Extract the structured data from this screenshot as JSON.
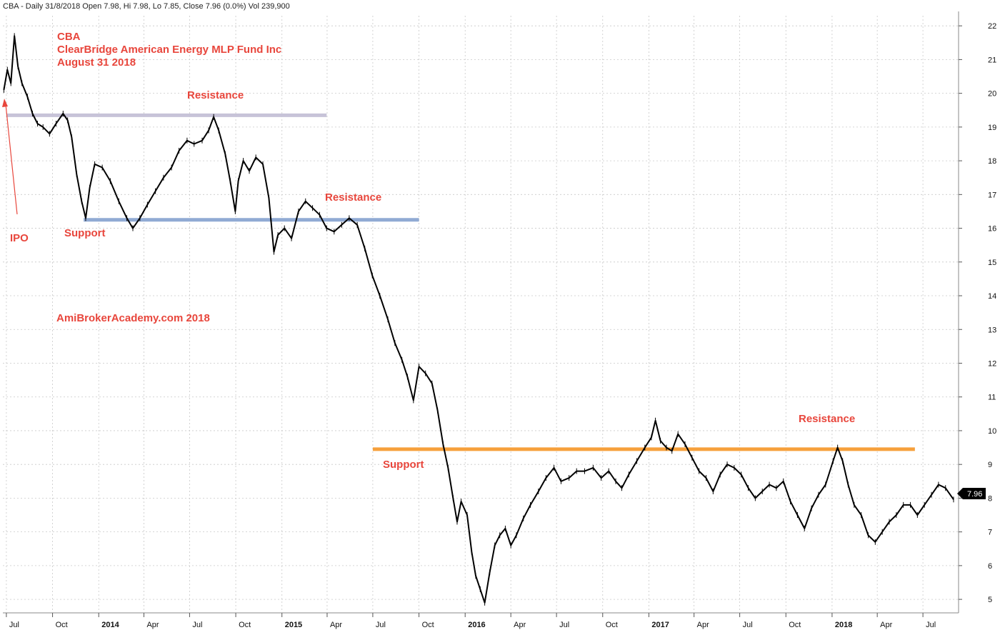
{
  "header": "CBA - Daily 31/8/2018 Open 7.98, Hi 7.98, Lo 7.85, Close 7.96 (0.0%) Vol 239,900",
  "title_lines": [
    "CBA",
    "ClearBridge American Energy MLP Fund Inc",
    "August 31 2018"
  ],
  "watermark": "AmiBrokerAcademy.com  2018",
  "last_price_tag": "7.96",
  "colors": {
    "annotation": "#e8463c",
    "price": "#000000",
    "grid": "#c8c8c8",
    "resistance_1": "#c7c3d8",
    "support_1": "#90aad4",
    "support_2": "#f6a03c"
  },
  "chart_data": {
    "type": "line",
    "ylim": [
      4.6,
      22.3
    ],
    "y_ticks": [
      "5",
      "6",
      "7",
      "8",
      "9",
      "10",
      "11",
      "12",
      "13",
      "14",
      "15",
      "16",
      "17",
      "18",
      "19",
      "20",
      "21",
      "22"
    ],
    "x_ticks": [
      {
        "label": "Jul",
        "date": "2013-07-01",
        "bold": false
      },
      {
        "label": "Oct",
        "date": "2013-10-01",
        "bold": false
      },
      {
        "label": "2014",
        "date": "2014-01-01",
        "bold": true
      },
      {
        "label": "Apr",
        "date": "2014-04-01",
        "bold": false
      },
      {
        "label": "Jul",
        "date": "2014-07-01",
        "bold": false
      },
      {
        "label": "Oct",
        "date": "2014-10-01",
        "bold": false
      },
      {
        "label": "2015",
        "date": "2015-01-01",
        "bold": true
      },
      {
        "label": "Apr",
        "date": "2015-04-01",
        "bold": false
      },
      {
        "label": "Jul",
        "date": "2015-07-01",
        "bold": false
      },
      {
        "label": "Oct",
        "date": "2015-10-01",
        "bold": false
      },
      {
        "label": "2016",
        "date": "2016-01-01",
        "bold": true
      },
      {
        "label": "Apr",
        "date": "2016-04-01",
        "bold": false
      },
      {
        "label": "Jul",
        "date": "2016-07-01",
        "bold": false
      },
      {
        "label": "Oct",
        "date": "2016-10-01",
        "bold": false
      },
      {
        "label": "2017",
        "date": "2017-01-01",
        "bold": true
      },
      {
        "label": "Apr",
        "date": "2017-04-01",
        "bold": false
      },
      {
        "label": "Jul",
        "date": "2017-07-01",
        "bold": false
      },
      {
        "label": "Oct",
        "date": "2017-10-01",
        "bold": false
      },
      {
        "label": "2018",
        "date": "2018-01-01",
        "bold": true
      },
      {
        "label": "Apr",
        "date": "2018-04-01",
        "bold": false
      },
      {
        "label": "Jul",
        "date": "2018-07-01",
        "bold": false
      }
    ],
    "series": [
      {
        "points": [
          [
            "2013-06-26",
            20.1
          ],
          [
            "2013-07-03",
            20.7
          ],
          [
            "2013-07-10",
            20.3
          ],
          [
            "2013-07-17",
            21.7
          ],
          [
            "2013-07-24",
            20.8
          ],
          [
            "2013-08-01",
            20.3
          ],
          [
            "2013-08-12",
            19.9
          ],
          [
            "2013-08-22",
            19.4
          ],
          [
            "2013-09-01",
            19.1
          ],
          [
            "2013-09-12",
            19.0
          ],
          [
            "2013-09-25",
            18.8
          ],
          [
            "2013-10-08",
            19.1
          ],
          [
            "2013-10-22",
            19.4
          ],
          [
            "2013-10-31",
            19.2
          ],
          [
            "2013-11-08",
            18.7
          ],
          [
            "2013-11-18",
            17.6
          ],
          [
            "2013-11-28",
            16.8
          ],
          [
            "2013-12-06",
            16.3
          ],
          [
            "2013-12-14",
            17.2
          ],
          [
            "2013-12-24",
            17.9
          ],
          [
            "2014-01-08",
            17.8
          ],
          [
            "2014-01-24",
            17.4
          ],
          [
            "2014-02-10",
            16.8
          ],
          [
            "2014-02-26",
            16.3
          ],
          [
            "2014-03-10",
            16.0
          ],
          [
            "2014-03-24",
            16.3
          ],
          [
            "2014-04-08",
            16.7
          ],
          [
            "2014-04-24",
            17.1
          ],
          [
            "2014-05-10",
            17.5
          ],
          [
            "2014-05-26",
            17.8
          ],
          [
            "2014-06-10",
            18.3
          ],
          [
            "2014-06-26",
            18.6
          ],
          [
            "2014-07-10",
            18.5
          ],
          [
            "2014-07-26",
            18.6
          ],
          [
            "2014-08-08",
            18.9
          ],
          [
            "2014-08-18",
            19.3
          ],
          [
            "2014-08-28",
            18.9
          ],
          [
            "2014-09-10",
            18.2
          ],
          [
            "2014-09-20",
            17.4
          ],
          [
            "2014-09-30",
            16.5
          ],
          [
            "2014-10-06",
            17.4
          ],
          [
            "2014-10-16",
            18.0
          ],
          [
            "2014-10-28",
            17.7
          ],
          [
            "2014-11-10",
            18.1
          ],
          [
            "2014-11-24",
            17.9
          ],
          [
            "2014-12-06",
            16.9
          ],
          [
            "2014-12-16",
            15.3
          ],
          [
            "2014-12-24",
            15.8
          ],
          [
            "2015-01-06",
            16.0
          ],
          [
            "2015-01-20",
            15.7
          ],
          [
            "2015-02-03",
            16.5
          ],
          [
            "2015-02-17",
            16.8
          ],
          [
            "2015-03-03",
            16.6
          ],
          [
            "2015-03-17",
            16.4
          ],
          [
            "2015-03-31",
            16.0
          ],
          [
            "2015-04-15",
            15.9
          ],
          [
            "2015-04-30",
            16.1
          ],
          [
            "2015-05-15",
            16.3
          ],
          [
            "2015-05-31",
            16.1
          ],
          [
            "2015-06-15",
            15.4
          ],
          [
            "2015-06-30",
            14.6
          ],
          [
            "2015-07-15",
            14.0
          ],
          [
            "2015-07-31",
            13.3
          ],
          [
            "2015-08-14",
            12.6
          ],
          [
            "2015-08-28",
            12.1
          ],
          [
            "2015-09-08",
            11.6
          ],
          [
            "2015-09-20",
            10.9
          ],
          [
            "2015-10-01",
            11.9
          ],
          [
            "2015-10-14",
            11.7
          ],
          [
            "2015-10-27",
            11.4
          ],
          [
            "2015-11-07",
            10.6
          ],
          [
            "2015-11-18",
            9.6
          ],
          [
            "2015-11-28",
            8.9
          ],
          [
            "2015-12-08",
            8.0
          ],
          [
            "2015-12-16",
            7.3
          ],
          [
            "2015-12-24",
            7.9
          ],
          [
            "2016-01-05",
            7.5
          ],
          [
            "2016-01-14",
            6.4
          ],
          [
            "2016-01-22",
            5.7
          ],
          [
            "2016-01-31",
            5.3
          ],
          [
            "2016-02-09",
            4.9
          ],
          [
            "2016-02-19",
            5.8
          ],
          [
            "2016-02-29",
            6.6
          ],
          [
            "2016-03-10",
            6.9
          ],
          [
            "2016-03-21",
            7.1
          ],
          [
            "2016-04-01",
            6.6
          ],
          [
            "2016-04-12",
            6.9
          ],
          [
            "2016-04-26",
            7.4
          ],
          [
            "2016-05-10",
            7.8
          ],
          [
            "2016-05-26",
            8.2
          ],
          [
            "2016-06-10",
            8.6
          ],
          [
            "2016-06-26",
            8.9
          ],
          [
            "2016-07-10",
            8.5
          ],
          [
            "2016-07-26",
            8.6
          ],
          [
            "2016-08-10",
            8.8
          ],
          [
            "2016-08-26",
            8.8
          ],
          [
            "2016-09-12",
            8.9
          ],
          [
            "2016-09-28",
            8.6
          ],
          [
            "2016-10-13",
            8.8
          ],
          [
            "2016-10-27",
            8.5
          ],
          [
            "2016-11-08",
            8.3
          ],
          [
            "2016-11-22",
            8.7
          ],
          [
            "2016-12-08",
            9.1
          ],
          [
            "2016-12-24",
            9.5
          ],
          [
            "2017-01-06",
            9.8
          ],
          [
            "2017-01-14",
            10.3
          ],
          [
            "2017-01-24",
            9.7
          ],
          [
            "2017-02-05",
            9.5
          ],
          [
            "2017-02-16",
            9.4
          ],
          [
            "2017-02-28",
            9.9
          ],
          [
            "2017-03-14",
            9.6
          ],
          [
            "2017-03-28",
            9.2
          ],
          [
            "2017-04-11",
            8.8
          ],
          [
            "2017-04-25",
            8.6
          ],
          [
            "2017-05-09",
            8.2
          ],
          [
            "2017-05-23",
            8.7
          ],
          [
            "2017-06-06",
            9.0
          ],
          [
            "2017-06-20",
            8.9
          ],
          [
            "2017-07-04",
            8.7
          ],
          [
            "2017-07-18",
            8.3
          ],
          [
            "2017-08-01",
            8.0
          ],
          [
            "2017-08-15",
            8.2
          ],
          [
            "2017-08-29",
            8.4
          ],
          [
            "2017-09-12",
            8.3
          ],
          [
            "2017-09-26",
            8.5
          ],
          [
            "2017-10-10",
            7.9
          ],
          [
            "2017-10-24",
            7.5
          ],
          [
            "2017-11-07",
            7.1
          ],
          [
            "2017-11-21",
            7.7
          ],
          [
            "2017-12-05",
            8.1
          ],
          [
            "2017-12-19",
            8.4
          ],
          [
            "2018-01-03",
            9.1
          ],
          [
            "2018-01-12",
            9.5
          ],
          [
            "2018-01-22",
            9.1
          ],
          [
            "2018-02-02",
            8.4
          ],
          [
            "2018-02-14",
            7.8
          ],
          [
            "2018-02-28",
            7.5
          ],
          [
            "2018-03-14",
            6.9
          ],
          [
            "2018-03-28",
            6.7
          ],
          [
            "2018-04-11",
            7.0
          ],
          [
            "2018-04-25",
            7.3
          ],
          [
            "2018-05-09",
            7.5
          ],
          [
            "2018-05-23",
            7.8
          ],
          [
            "2018-06-06",
            7.8
          ],
          [
            "2018-06-20",
            7.5
          ],
          [
            "2018-07-04",
            7.8
          ],
          [
            "2018-07-18",
            8.1
          ],
          [
            "2018-08-01",
            8.4
          ],
          [
            "2018-08-15",
            8.3
          ],
          [
            "2018-08-31",
            7.96
          ]
        ]
      }
    ],
    "levels": [
      {
        "id": "resistance_1",
        "y": 19.35,
        "x0": "2013-07-01",
        "x1": "2015-03-31",
        "color_key": "resistance_1"
      },
      {
        "id": "support_1",
        "y": 16.25,
        "x0": "2013-12-02",
        "x1": "2015-10-01",
        "color_key": "support_1"
      },
      {
        "id": "support_2",
        "y": 9.45,
        "x0": "2015-07-01",
        "x1": "2018-06-15",
        "color_key": "support_2"
      }
    ],
    "annotations": [
      {
        "id": "resistance-label-1",
        "text": "Resistance"
      },
      {
        "id": "resistance-label-2",
        "text": "Resistance"
      },
      {
        "id": "resistance-label-3",
        "text": "Resistance"
      },
      {
        "id": "support-label-1",
        "text": "Support"
      },
      {
        "id": "support-label-2",
        "text": "Support"
      },
      {
        "id": "ipo-label",
        "text": "IPO"
      }
    ]
  }
}
